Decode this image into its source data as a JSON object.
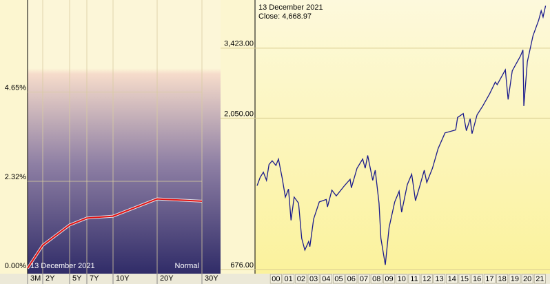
{
  "chart_data": [
    {
      "type": "line",
      "categories": [
        "3M",
        "2Y",
        "5Y",
        "7Y",
        "10Y",
        "20Y",
        "30Y"
      ],
      "values": [
        0.05,
        0.65,
        1.18,
        1.36,
        1.41,
        1.86,
        1.8
      ],
      "color": "#e01010",
      "ylim": [
        0,
        7.05
      ],
      "yticks": [
        {
          "value": 0,
          "label": "0.00%"
        },
        {
          "value": 2.32,
          "label": "2.32%"
        },
        {
          "value": 4.65,
          "label": "4.65%"
        }
      ],
      "grid": true,
      "annotations": [
        "13  December 2021",
        "Normal"
      ]
    },
    {
      "type": "line",
      "x": [
        1999.0,
        1999.25,
        1999.5,
        1999.75,
        1999.95,
        2000.2,
        2000.5,
        2000.7,
        2001.0,
        2001.25,
        2001.5,
        2001.7,
        2001.95,
        2002.3,
        2002.55,
        2002.8,
        2003.1,
        2003.2,
        2003.5,
        2003.95,
        2004.5,
        2004.6,
        2004.95,
        2005.3,
        2005.95,
        2006.4,
        2006.5,
        2006.95,
        2007.4,
        2007.6,
        2007.8,
        2008.2,
        2008.4,
        2008.7,
        2008.85,
        2009.2,
        2009.5,
        2009.95,
        2010.3,
        2010.5,
        2010.95,
        2011.3,
        2011.6,
        2011.95,
        2012.3,
        2012.5,
        2012.95,
        2013.4,
        2013.95,
        2014.8,
        2014.95,
        2015.4,
        2015.65,
        2015.95,
        2016.1,
        2016.5,
        2016.95,
        2017.5,
        2017.95,
        2018.1,
        2018.75,
        2018.97,
        2019.3,
        2019.95,
        2020.15,
        2020.22,
        2020.5,
        2020.95,
        2021.4,
        2021.6,
        2021.75,
        2021.95
      ],
      "values": [
        1250,
        1330,
        1380,
        1300,
        1460,
        1500,
        1450,
        1520,
        1320,
        1150,
        1220,
        970,
        1150,
        1100,
        850,
        780,
        830,
        800,
        980,
        1110,
        1130,
        1070,
        1210,
        1160,
        1250,
        1310,
        1230,
        1420,
        1520,
        1420,
        1560,
        1300,
        1400,
        1100,
        850,
        700,
        920,
        1110,
        1200,
        1030,
        1260,
        1360,
        1120,
        1250,
        1400,
        1280,
        1420,
        1640,
        1840,
        1880,
        2060,
        2120,
        1870,
        2040,
        1830,
        2100,
        2240,
        2450,
        2670,
        2620,
        2920,
        2350,
        2900,
        3230,
        3380,
        2240,
        3100,
        3750,
        4200,
        4500,
        4300,
        4669
      ],
      "color": "#1a1a8c",
      "log_scale": true,
      "xlim": [
        1999,
        2022
      ],
      "xticks": [
        {
          "value": 2000,
          "label": "00"
        },
        {
          "value": 2001,
          "label": "01"
        },
        {
          "value": 2002,
          "label": "02"
        },
        {
          "value": 2003,
          "label": "03"
        },
        {
          "value": 2004,
          "label": "04"
        },
        {
          "value": 2005,
          "label": "05"
        },
        {
          "value": 2006,
          "label": "06"
        },
        {
          "value": 2007,
          "label": "07"
        },
        {
          "value": 2008,
          "label": "08"
        },
        {
          "value": 2009,
          "label": "09"
        },
        {
          "value": 2010,
          "label": "10"
        },
        {
          "value": 2011,
          "label": "11"
        },
        {
          "value": 2012,
          "label": "12"
        },
        {
          "value": 2013,
          "label": "13"
        },
        {
          "value": 2014,
          "label": "14"
        },
        {
          "value": 2015,
          "label": "15"
        },
        {
          "value": 2016,
          "label": "16"
        },
        {
          "value": 2017,
          "label": "17"
        },
        {
          "value": 2018,
          "label": "18"
        },
        {
          "value": 2019,
          "label": "19"
        },
        {
          "value": 2020,
          "label": "20"
        },
        {
          "value": 2021,
          "label": "21"
        }
      ],
      "ylim": [
        663,
        4870
      ],
      "yticks": [
        {
          "value": 676,
          "label": "676.00"
        },
        {
          "value": 2050,
          "label": "2,050.00"
        },
        {
          "value": 3423,
          "label": "3,423.00"
        }
      ],
      "grid": true,
      "annotations": [
        "13  December 2021",
        "Close: 4,668.97"
      ]
    }
  ]
}
